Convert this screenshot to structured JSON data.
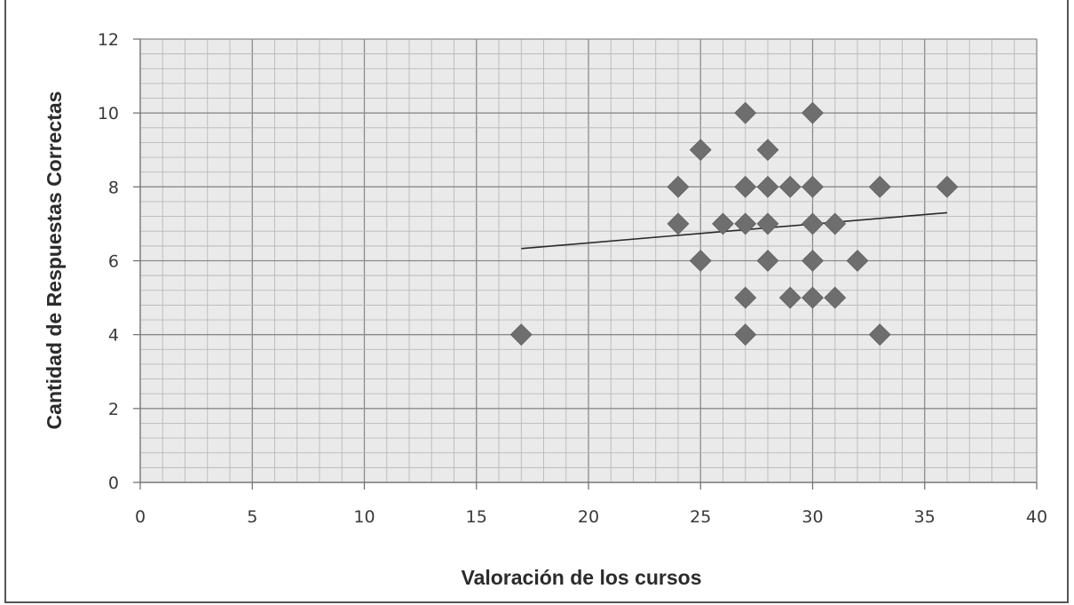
{
  "chart_data": {
    "type": "scatter",
    "title": "",
    "xlabel": "Valoración de los cursos",
    "ylabel": "Cantidad de Respuestas Correctas",
    "xlim": [
      0,
      40
    ],
    "ylim": [
      0,
      12
    ],
    "x_ticks": [
      0,
      5,
      10,
      15,
      20,
      25,
      30,
      35,
      40
    ],
    "y_ticks": [
      0,
      2,
      4,
      6,
      8,
      10,
      12
    ],
    "grid": true,
    "marker": "diamond",
    "colors": {
      "marker": "#6e6e6e",
      "plot_bg": "#eaeaea",
      "grid_minor": "#b9b9b9",
      "grid_major": "#8a8a8a",
      "trendline": "#2a2a2a"
    },
    "series": [
      {
        "points": [
          {
            "x": 17,
            "y": 4
          },
          {
            "x": 24,
            "y": 8
          },
          {
            "x": 24,
            "y": 7
          },
          {
            "x": 25,
            "y": 9
          },
          {
            "x": 25,
            "y": 6
          },
          {
            "x": 26,
            "y": 7
          },
          {
            "x": 27,
            "y": 10
          },
          {
            "x": 27,
            "y": 8
          },
          {
            "x": 27,
            "y": 7
          },
          {
            "x": 27,
            "y": 5
          },
          {
            "x": 27,
            "y": 4
          },
          {
            "x": 28,
            "y": 9
          },
          {
            "x": 28,
            "y": 8
          },
          {
            "x": 28,
            "y": 7
          },
          {
            "x": 28,
            "y": 6
          },
          {
            "x": 29,
            "y": 8
          },
          {
            "x": 29,
            "y": 5
          },
          {
            "x": 30,
            "y": 10
          },
          {
            "x": 30,
            "y": 8
          },
          {
            "x": 30,
            "y": 7
          },
          {
            "x": 30,
            "y": 6
          },
          {
            "x": 30,
            "y": 5
          },
          {
            "x": 31,
            "y": 7
          },
          {
            "x": 31,
            "y": 5
          },
          {
            "x": 32,
            "y": 6
          },
          {
            "x": 33,
            "y": 8
          },
          {
            "x": 33,
            "y": 4
          },
          {
            "x": 36,
            "y": 8
          }
        ]
      }
    ],
    "trendline": {
      "type": "linear",
      "x_start": 17,
      "y_start": 6.33,
      "x_end": 36,
      "y_end": 7.3
    }
  }
}
